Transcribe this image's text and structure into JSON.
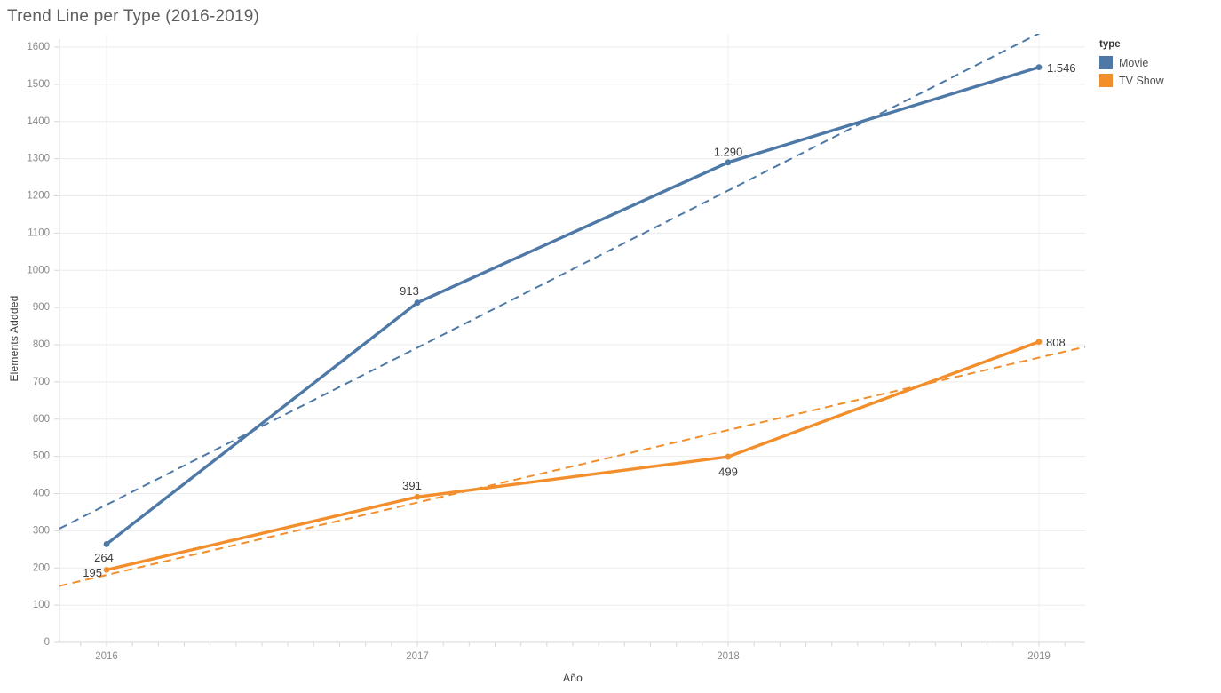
{
  "title": "Trend Line per Type (2016-2019)",
  "legend": {
    "title": "type",
    "items": [
      {
        "label": "Movie",
        "color": "#4e79a7"
      },
      {
        "label": "TV Show",
        "color": "#f28e2b"
      }
    ]
  },
  "chart_data": {
    "type": "line",
    "title": "Trend Line per Type (2016-2019)",
    "xlabel": "Año",
    "ylabel": "Elements Addded",
    "x": [
      2016,
      2017,
      2018,
      2019
    ],
    "x_tick_labels": [
      "2016",
      "2017",
      "2018",
      "2019"
    ],
    "ylim": [
      0,
      1600
    ],
    "y_tick_step": 100,
    "y_tick_labels": [
      "0",
      "100",
      "200",
      "300",
      "400",
      "500",
      "600",
      "700",
      "800",
      "900",
      "1000",
      "1100",
      "1200",
      "1300",
      "1400",
      "1500",
      "1600"
    ],
    "grid": true,
    "legend_position": "top-right",
    "series": [
      {
        "name": "Movie",
        "color": "#4e79a7",
        "values": [
          264,
          913,
          1290,
          1546
        ],
        "point_labels": [
          "264",
          "913",
          "1.290",
          "1.546"
        ],
        "trendline": "dashed"
      },
      {
        "name": "TV Show",
        "color": "#f28e2b",
        "values": [
          195,
          391,
          499,
          808
        ],
        "point_labels": [
          "195",
          "391",
          "499",
          "808"
        ],
        "trendline": "dashed"
      }
    ]
  },
  "colors": {
    "background": "#ffffff",
    "title_text": "#5e5e5e",
    "axis_title": "#3c3c3c",
    "tick_label": "#8c8c8c",
    "data_label": "#3c3c3c",
    "gridline_h": "#ebebeb",
    "gridline_v": "#f0f0f0",
    "axis_ruler": "#d7d7d7",
    "series_movie": "#4e79a7",
    "series_tv_show": "#f28e2b"
  }
}
